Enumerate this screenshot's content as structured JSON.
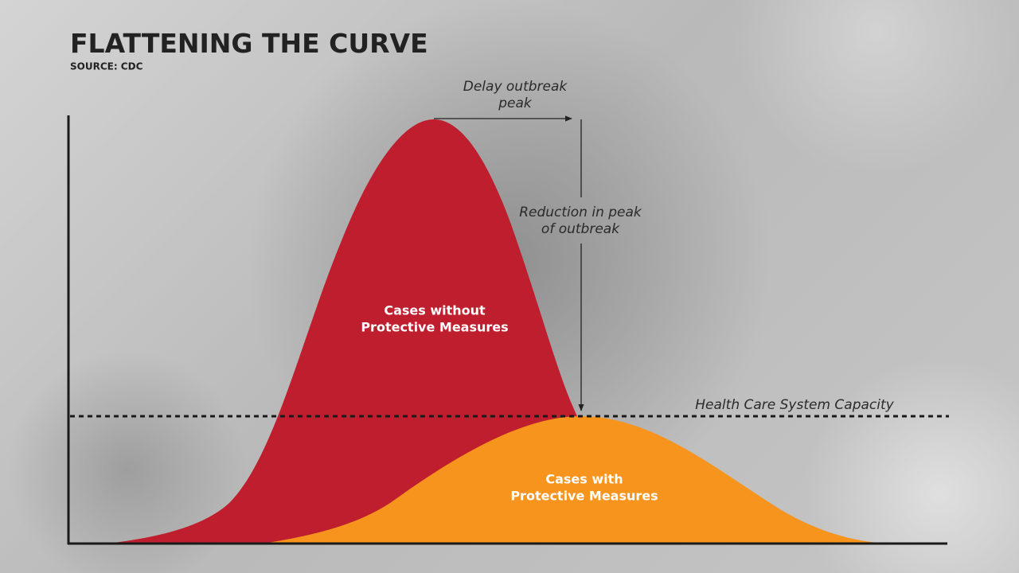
{
  "header": {
    "title": "FLATTENING THE CURVE",
    "source": "SOURCE: CDC"
  },
  "annotations": {
    "delay": [
      "Delay outbreak",
      "peak"
    ],
    "reduction": [
      "Reduction in peak",
      "of outbreak"
    ],
    "capacity": "Health Care System Capacity"
  },
  "curves": {
    "without": [
      "Cases without",
      "Protective Measures"
    ],
    "with": [
      "Cases with",
      "Protective Measures"
    ]
  }
}
